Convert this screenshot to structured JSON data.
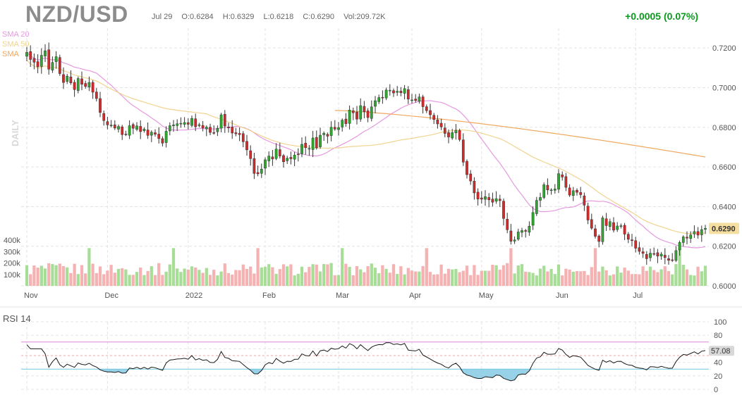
{
  "header": {
    "symbol": "NZD/USD",
    "date": "Jul 29",
    "open": "O:0.6284",
    "high": "H:0.6329",
    "low": "L:0.6218",
    "close": "C:0.6290",
    "volume": "Vol:209.72K",
    "change": "+0.0005 (0.07%)"
  },
  "legend": [
    {
      "label": "SMA 20",
      "color": "#e59ae0"
    },
    {
      "label": "SMA 50",
      "color": "#f0d490"
    },
    {
      "label": "SMA",
      "color": "#f0a860"
    }
  ],
  "colors": {
    "up": "#2ea82e",
    "down": "#d42a2a",
    "vol_up": "#a8dd98",
    "vol_down": "#f5b2b2",
    "rsi_line": "#1a1a1a",
    "rsi_upper": "#d88ad8",
    "rsi_lower": "#6ec6e0",
    "price_tag": "#f5dfa0"
  },
  "chart_data": [
    {
      "type": "candlestick",
      "period_label": "DAILY",
      "ylim": [
        0.6,
        0.73
      ],
      "y_ticks": [
        "0.7200",
        "0.7000",
        "0.6800",
        "0.6600",
        "0.6400",
        "0.6200",
        "0.6000"
      ],
      "y_tick_values": [
        0.72,
        0.7,
        0.68,
        0.66,
        0.64,
        0.62,
        0.6
      ],
      "x_ticks": [
        "Nov",
        "Dec",
        "2022",
        "Feb",
        "Mar",
        "Apr",
        "May",
        "Jun",
        "Jul"
      ],
      "x_tick_index": [
        0,
        22,
        44,
        65,
        85,
        105,
        124,
        145,
        166
      ],
      "last_price": "0.6290",
      "last_price_value": 0.629,
      "volume_ticks": [
        "400k",
        "300k",
        "200k",
        "100k"
      ],
      "volume_tick_values": [
        400000,
        300000,
        200000,
        100000
      ],
      "closes": [
        0.7178,
        0.7142,
        0.7128,
        0.7105,
        0.7163,
        0.7186,
        0.7093,
        0.7127,
        0.7156,
        0.7071,
        0.7026,
        0.7058,
        0.7024,
        0.699,
        0.7046,
        0.7017,
        0.7006,
        0.7026,
        0.6977,
        0.6945,
        0.6875,
        0.6834,
        0.6812,
        0.6811,
        0.6796,
        0.6804,
        0.6763,
        0.6765,
        0.6808,
        0.6795,
        0.6807,
        0.6778,
        0.6791,
        0.6759,
        0.6775,
        0.6765,
        0.6743,
        0.672,
        0.678,
        0.6808,
        0.6812,
        0.6818,
        0.682,
        0.6824,
        0.6815,
        0.6845,
        0.6803,
        0.6813,
        0.6797,
        0.6801,
        0.6774,
        0.6773,
        0.6795,
        0.6863,
        0.6806,
        0.6797,
        0.6771,
        0.6767,
        0.6763,
        0.6727,
        0.6686,
        0.6642,
        0.6567,
        0.6565,
        0.6589,
        0.6636,
        0.6655,
        0.664,
        0.669,
        0.6655,
        0.6626,
        0.6644,
        0.6641,
        0.666,
        0.6662,
        0.6714,
        0.6697,
        0.6693,
        0.6746,
        0.6696,
        0.676,
        0.677,
        0.6755,
        0.68,
        0.6791,
        0.6798,
        0.6836,
        0.6818,
        0.6887,
        0.6873,
        0.6841,
        0.6909,
        0.6878,
        0.6849,
        0.6903,
        0.6934,
        0.695,
        0.6949,
        0.6988,
        0.6987,
        0.6973,
        0.6982,
        0.6974,
        0.6995,
        0.6942,
        0.6938,
        0.6935,
        0.6953,
        0.6904,
        0.6884,
        0.6863,
        0.6839,
        0.6817,
        0.6802,
        0.6769,
        0.6751,
        0.6773,
        0.6785,
        0.6738,
        0.6624,
        0.6561,
        0.6529,
        0.6469,
        0.6438,
        0.6437,
        0.645,
        0.6434,
        0.6422,
        0.644,
        0.643,
        0.634,
        0.6283,
        0.6225,
        0.6232,
        0.6272,
        0.6279,
        0.6275,
        0.6301,
        0.637,
        0.6431,
        0.6446,
        0.651,
        0.6484,
        0.6484,
        0.6489,
        0.6566,
        0.6549,
        0.6497,
        0.6458,
        0.648,
        0.6472,
        0.646,
        0.6407,
        0.6332,
        0.6291,
        0.625,
        0.6224,
        0.6343,
        0.6304,
        0.6324,
        0.6281,
        0.6302,
        0.6303,
        0.6261,
        0.6235,
        0.6228,
        0.619,
        0.6174,
        0.6164,
        0.6137,
        0.6165,
        0.6163,
        0.615,
        0.616,
        0.6143,
        0.6129,
        0.613,
        0.6178,
        0.6219,
        0.6247,
        0.6241,
        0.6257,
        0.6274,
        0.6256,
        0.6284,
        0.629
      ],
      "rsi": {
        "label": "RSI 14",
        "last_value": "57.08",
        "last_value_number": 57.08,
        "y_ticks": [
          "100",
          "80",
          "60",
          "40",
          "20",
          "0"
        ],
        "y_tick_values": [
          100,
          80,
          60,
          40,
          20,
          0
        ],
        "upper_band": 70,
        "lower_band": 30
      }
    }
  ]
}
